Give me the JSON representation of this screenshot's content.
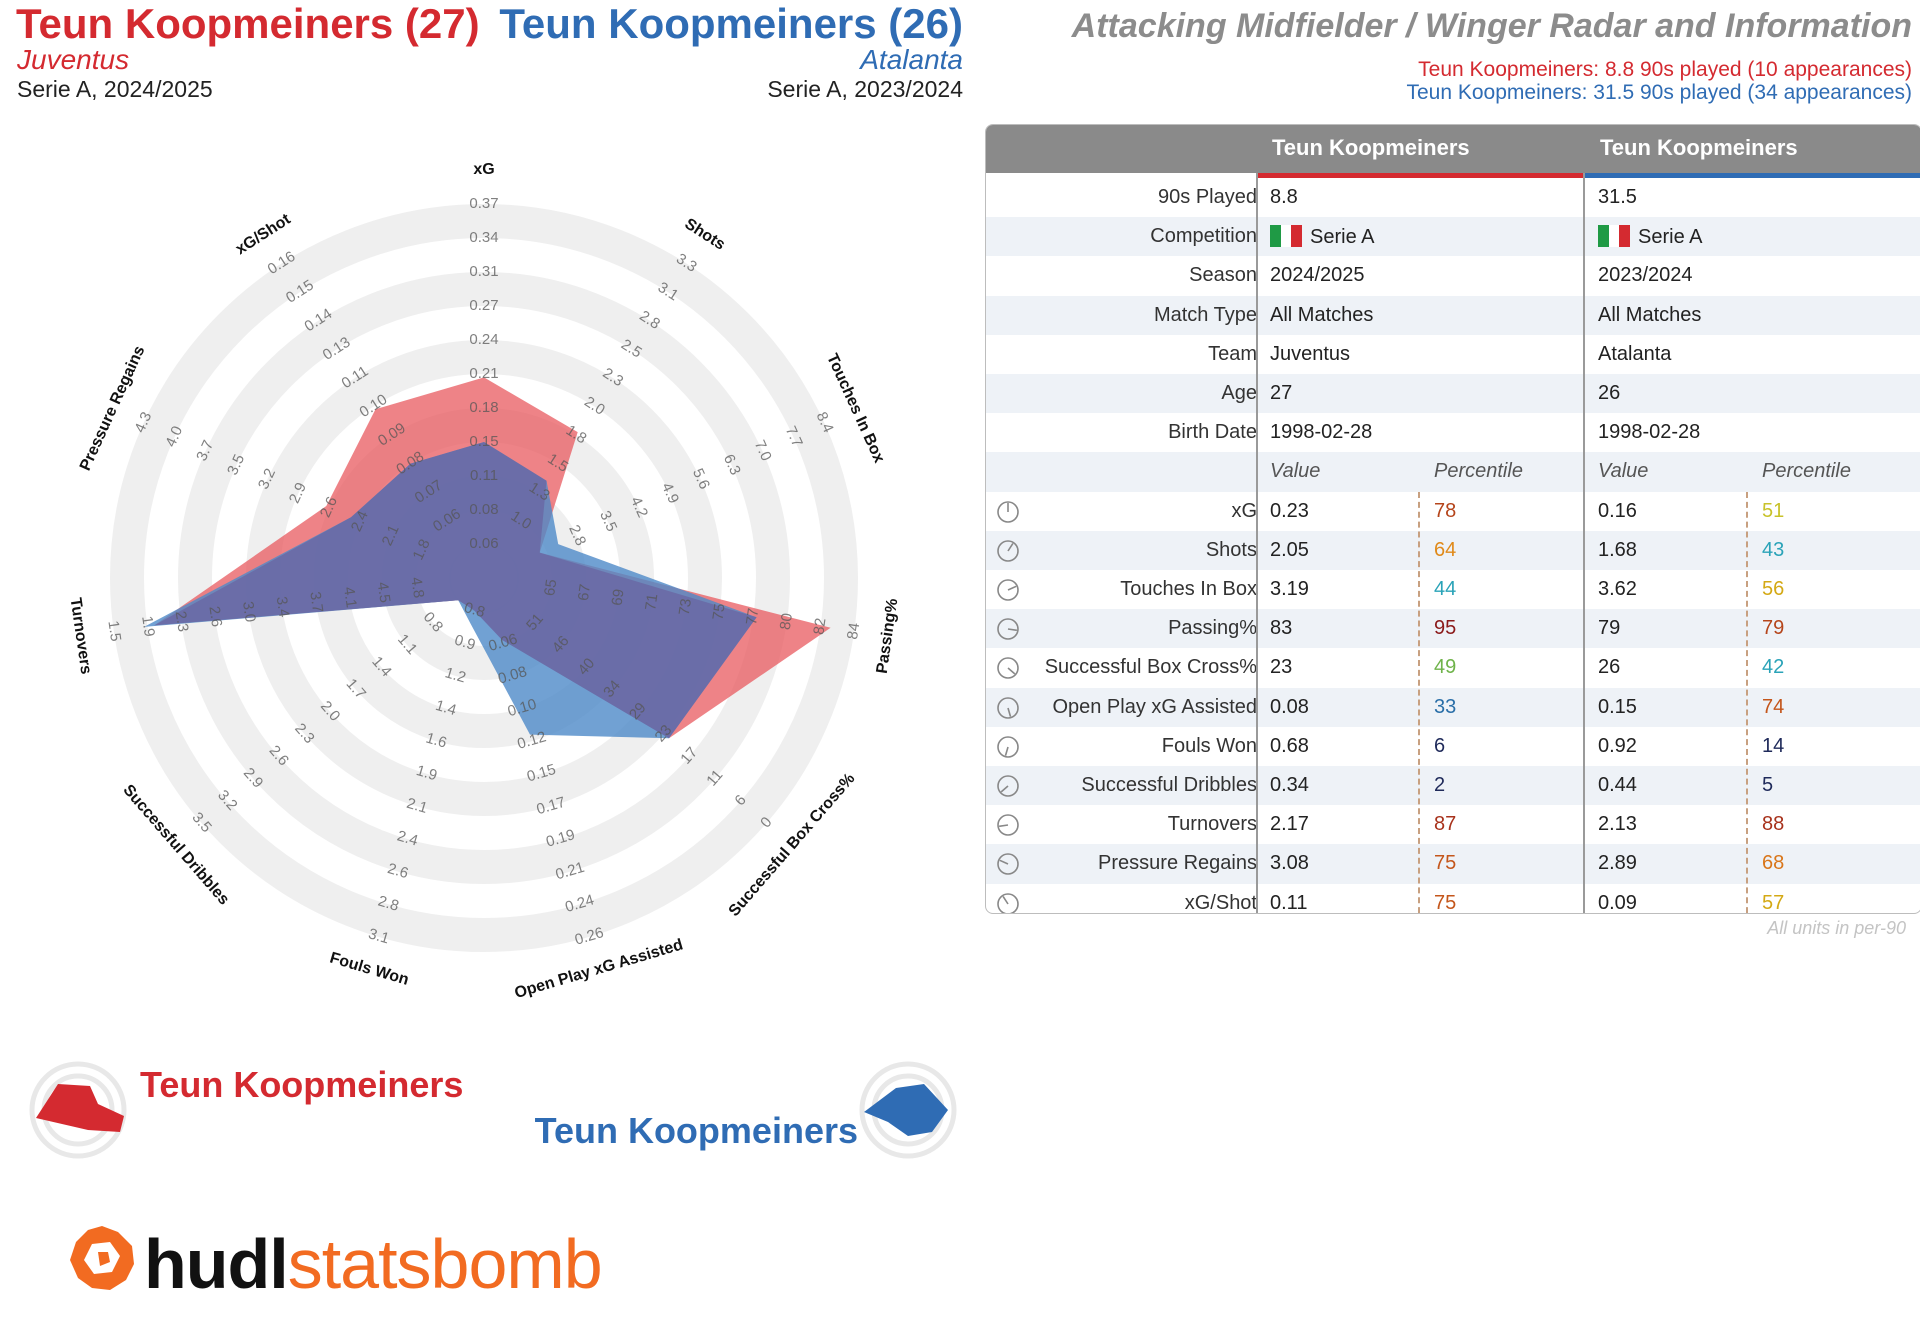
{
  "header": {
    "p1": {
      "name": "Teun Koopmeiners (27)",
      "team": "Juventus",
      "comp": "Serie A, 2024/2025",
      "color": "#d42a30"
    },
    "p2": {
      "name": "Teun Koopmeiners (26)",
      "team": "Atalanta",
      "comp": "Serie A, 2023/2024",
      "color": "#2f6cb4"
    },
    "title": "Attacking Midfielder / Winger Radar and Information",
    "note1": "Teun Koopmeiners: 8.8 90s played (10 appearances)",
    "note2": "Teun Koopmeiners: 31.5 90s played (34 appearances)"
  },
  "chart_data": {
    "type": "radar",
    "axes": [
      {
        "label": "xG",
        "ticks": [
          "0.06",
          "0.08",
          "0.11",
          "0.15",
          "0.18",
          "0.21",
          "0.24",
          "0.27",
          "0.31",
          "0.34",
          "0.37"
        ]
      },
      {
        "label": "Shots",
        "ticks": [
          "1.0",
          "1.3",
          "1.5",
          "1.8",
          "2.0",
          "2.3",
          "2.5",
          "2.8",
          "3.1",
          "3.3"
        ]
      },
      {
        "label": "Touches In Box",
        "ticks": [
          "2.8",
          "3.5",
          "4.2",
          "4.9",
          "5.6",
          "6.3",
          "7.0",
          "7.7",
          "8.4"
        ]
      },
      {
        "label": "Passing%",
        "ticks": [
          "65",
          "67",
          "69",
          "71",
          "73",
          "75",
          "77",
          "80",
          "82",
          "84"
        ]
      },
      {
        "label": "Successful Box Cross%",
        "ticks": [
          "51",
          "46",
          "40",
          "34",
          "29",
          "23",
          "17",
          "11",
          "6",
          "0"
        ]
      },
      {
        "label": "Open Play xG Assisted",
        "ticks": [
          "0.06",
          "0.08",
          "0.10",
          "0.12",
          "0.15",
          "0.17",
          "0.19",
          "0.21",
          "0.24",
          "0.26"
        ]
      },
      {
        "label": "Fouls Won",
        "ticks": [
          "0.8",
          "0.9",
          "1.2",
          "1.4",
          "1.6",
          "1.9",
          "2.1",
          "2.4",
          "2.6",
          "2.8",
          "3.1"
        ]
      },
      {
        "label": "Successful Dribbles",
        "ticks": [
          "0.8",
          "1.1",
          "1.4",
          "1.7",
          "2.0",
          "2.3",
          "2.6",
          "2.9",
          "3.2",
          "3.5"
        ]
      },
      {
        "label": "Turnovers",
        "ticks": [
          "4.8",
          "4.5",
          "4.1",
          "3.7",
          "3.4",
          "3.0",
          "2.6",
          "2.3",
          "1.9",
          "1.5"
        ]
      },
      {
        "label": "Pressure Regains",
        "ticks": [
          "1.8",
          "2.1",
          "2.4",
          "2.6",
          "2.9",
          "3.2",
          "3.5",
          "3.7",
          "4.0",
          "4.3"
        ]
      },
      {
        "label": "xG/Shot",
        "ticks": [
          "0.06",
          "0.07",
          "0.08",
          "0.09",
          "0.10",
          "0.11",
          "0.13",
          "0.14",
          "0.15",
          "0.16"
        ]
      }
    ],
    "series": [
      {
        "name": "Teun Koopmeiners",
        "color": "#e8595f",
        "fractions": [
          0.49,
          0.41,
          0.08,
          0.93,
          0.62,
          0.09,
          0.0,
          0.0,
          0.88,
          0.41,
          0.49
        ]
      },
      {
        "name": "Teun Koopmeiners",
        "color": "#4d8ac8",
        "fractions": [
          0.3,
          0.24,
          0.14,
          0.71,
          0.62,
          0.38,
          0.04,
          0.0,
          0.91,
          0.33,
          0.3
        ]
      }
    ]
  },
  "table": {
    "head": {
      "c1": "Teun Koopmeiners",
      "c2": "Teun Koopmeiners"
    },
    "info": [
      {
        "label": "90s Played",
        "v1": "8.8",
        "v2": "31.5"
      },
      {
        "label": "Competition",
        "v1": "Serie A",
        "v2": "Serie A",
        "flag": true
      },
      {
        "label": "Season",
        "v1": "2024/2025",
        "v2": "2023/2024"
      },
      {
        "label": "Match Type",
        "v1": "All Matches",
        "v2": "All Matches"
      },
      {
        "label": "Team",
        "v1": "Juventus",
        "v2": "Atalanta"
      },
      {
        "label": "Age",
        "v1": "27",
        "v2": "26"
      },
      {
        "label": "Birth Date",
        "v1": "1998-02-28",
        "v2": "1998-02-28"
      }
    ],
    "sub": {
      "value": "Value",
      "percentile": "Percentile"
    },
    "metrics": [
      {
        "label": "xG",
        "v1": "0.23",
        "p1": "78",
        "pc1": "#b5451b",
        "v2": "0.16",
        "p2": "51",
        "pc2": "#c8c22a"
      },
      {
        "label": "Shots",
        "v1": "2.05",
        "p1": "64",
        "pc1": "#e08a1a",
        "v2": "1.68",
        "p2": "43",
        "pc2": "#2aa3b8"
      },
      {
        "label": "Touches In Box",
        "v1": "3.19",
        "p1": "44",
        "pc1": "#2aa3b8",
        "v2": "3.62",
        "p2": "56",
        "pc2": "#d4a915"
      },
      {
        "label": "Passing%",
        "v1": "83",
        "p1": "95",
        "pc1": "#8b1a1a",
        "v2": "79",
        "p2": "79",
        "pc2": "#b5451b"
      },
      {
        "label": "Successful Box Cross%",
        "v1": "23",
        "p1": "49",
        "pc1": "#6fb34a",
        "v2": "26",
        "p2": "42",
        "pc2": "#2aa3b8"
      },
      {
        "label": "Open Play xG Assisted",
        "v1": "0.08",
        "p1": "33",
        "pc1": "#2a6fa8",
        "v2": "0.15",
        "p2": "74",
        "pc2": "#c4561b"
      },
      {
        "label": "Fouls Won",
        "v1": "0.68",
        "p1": "6",
        "pc1": "#1f2a5a",
        "v2": "0.92",
        "p2": "14",
        "pc2": "#1f2a5a"
      },
      {
        "label": "Successful Dribbles",
        "v1": "0.34",
        "p1": "2",
        "pc1": "#1f2a5a",
        "v2": "0.44",
        "p2": "5",
        "pc2": "#1f2a5a"
      },
      {
        "label": "Turnovers",
        "v1": "2.17",
        "p1": "87",
        "pc1": "#a8321c",
        "v2": "2.13",
        "p2": "88",
        "pc2": "#a8321c"
      },
      {
        "label": "Pressure Regains",
        "v1": "3.08",
        "p1": "75",
        "pc1": "#c4561b",
        "v2": "2.89",
        "p2": "68",
        "pc2": "#d9761a"
      },
      {
        "label": "xG/Shot",
        "v1": "0.11",
        "p1": "75",
        "pc1": "#c4561b",
        "v2": "0.09",
        "p2": "57",
        "pc2": "#d4a915"
      }
    ],
    "units_note": "All units in per-90"
  },
  "legend": {
    "p1": "Teun Koopmeiners",
    "p2": "Teun Koopmeiners"
  },
  "logo": {
    "part1": "hudl",
    "part2": "statsbomb",
    "color": "#f26b21"
  }
}
